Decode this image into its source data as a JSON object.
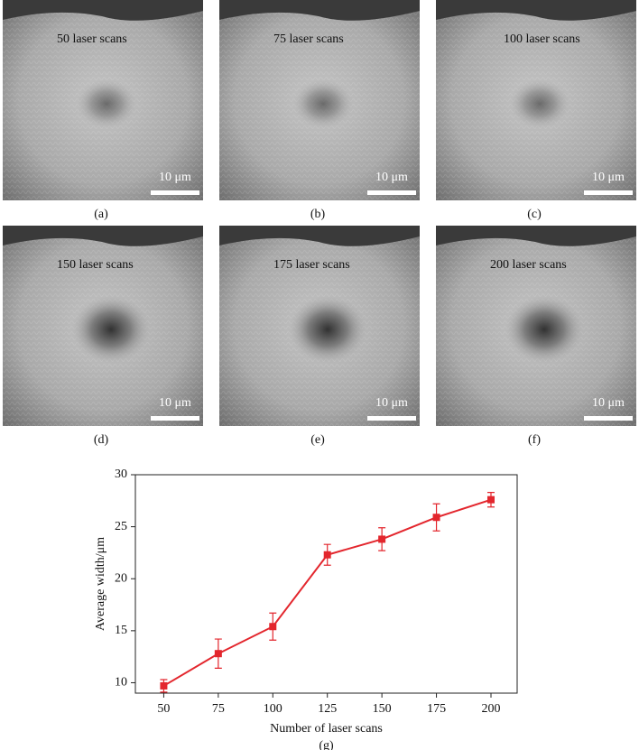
{
  "panels": [
    {
      "label": "50 laser scans",
      "scale": "10 μm",
      "caption": "(a)"
    },
    {
      "label": "75 laser scans",
      "scale": "10 μm",
      "caption": "(b)"
    },
    {
      "label": "100 laser scans",
      "scale": "10 μm",
      "caption": "(c)"
    },
    {
      "label": "150 laser scans",
      "scale": "10 μm",
      "caption": "(d)"
    },
    {
      "label": "175 laser scans",
      "scale": "10 μm",
      "caption": "(e)"
    },
    {
      "label": "200 laser scans",
      "scale": "10 μm",
      "caption": "(f)"
    }
  ],
  "chart_caption": "(g)",
  "chart_data": {
    "type": "line",
    "x_label": "Number of laser scans",
    "y_label": "Average width/μm",
    "x": [
      50,
      75,
      100,
      125,
      150,
      175,
      200
    ],
    "series": [
      {
        "color": "#e3262d",
        "values": [
          9.7,
          12.8,
          15.4,
          22.3,
          23.8,
          25.9,
          27.6
        ],
        "errors": [
          0.6,
          1.4,
          1.3,
          1.0,
          1.1,
          1.3,
          0.7
        ]
      }
    ],
    "xlim": [
      37,
      212
    ],
    "ylim": [
      9,
      30
    ],
    "xticks": [
      50,
      75,
      100,
      125,
      150,
      175,
      200
    ],
    "yticks": [
      10,
      15,
      20,
      25,
      30
    ]
  }
}
